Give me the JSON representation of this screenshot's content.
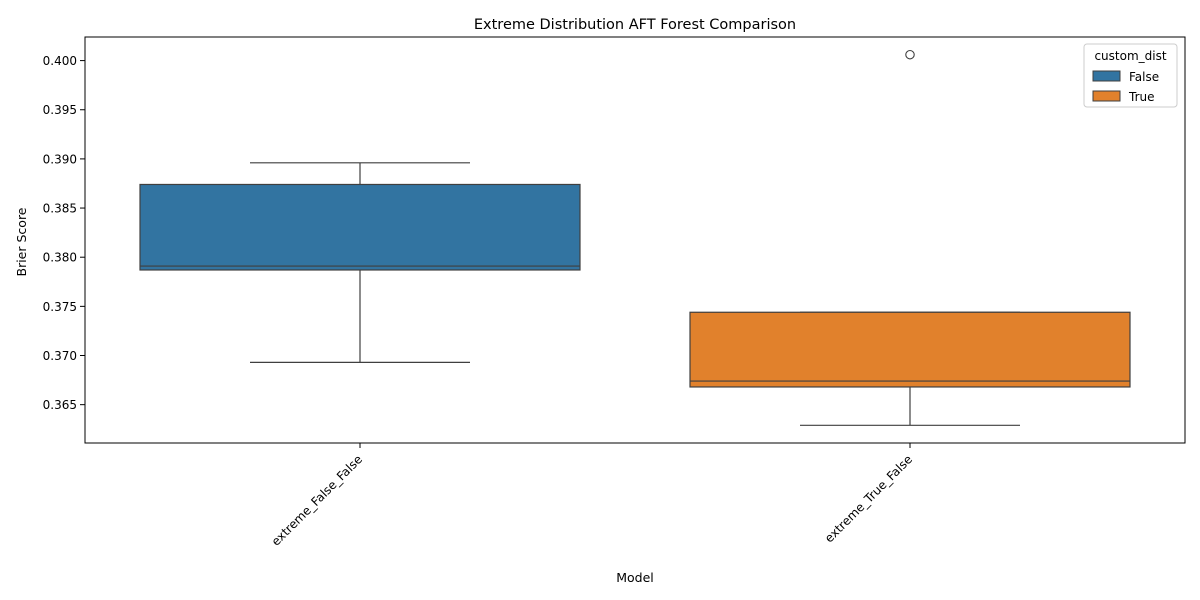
{
  "chart_data": {
    "type": "box",
    "title": "Extreme Distribution AFT Forest Comparison",
    "xlabel": "Model",
    "ylabel": "Brier Score",
    "ylim": [
      0.3611,
      0.4024
    ],
    "yticks": [
      0.365,
      0.37,
      0.375,
      0.38,
      0.385,
      0.39,
      0.395,
      0.4
    ],
    "ytick_labels": [
      "0.365",
      "0.370",
      "0.375",
      "0.380",
      "0.385",
      "0.390",
      "0.395",
      "0.400"
    ],
    "categories": [
      "extreme_False_False",
      "extreme_True_False"
    ],
    "legend": {
      "title": "custom_dist",
      "position": "top-right",
      "entries": [
        {
          "label": "False",
          "color": "#3274a1"
        },
        {
          "label": "True",
          "color": "#e1812c"
        }
      ]
    },
    "series": [
      {
        "name": "False",
        "category": "extreme_False_False",
        "color": "#3274a1",
        "whisker_low": 0.3693,
        "q1": 0.3787,
        "median": 0.3791,
        "q3": 0.3874,
        "whisker_high": 0.3896,
        "outliers": []
      },
      {
        "name": "True",
        "category": "extreme_True_False",
        "color": "#e1812c",
        "whisker_low": 0.3629,
        "q1": 0.3668,
        "median": 0.3674,
        "q3": 0.3744,
        "whisker_high": 0.3744,
        "outliers": [
          0.4006
        ]
      }
    ]
  }
}
